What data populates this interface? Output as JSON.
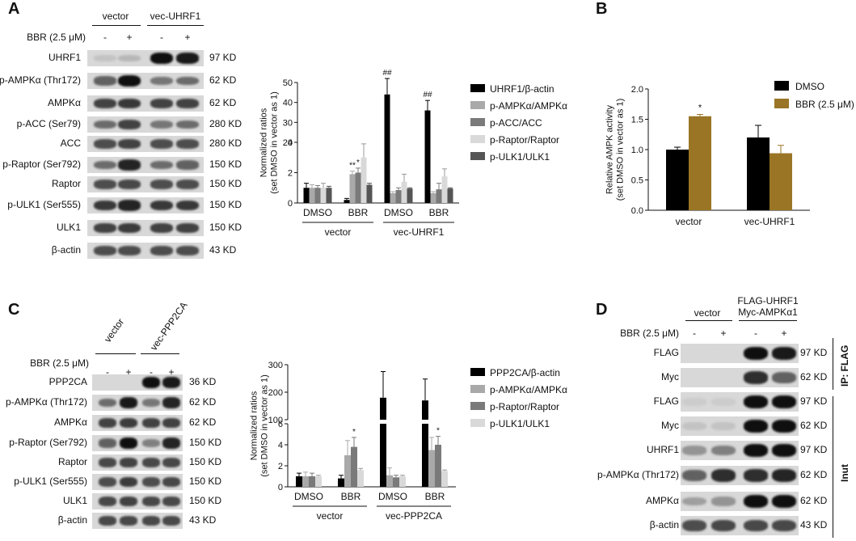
{
  "colors": {
    "black": "#000000",
    "gray_light": "#a9a9a9",
    "gray_mid": "#7a7a7a",
    "gray_pale": "#d9d9d9",
    "gray_dark": "#555555",
    "olive": "#9a7526"
  },
  "panel_A": {
    "label": "A",
    "group_labels": [
      "vector",
      "vec-UHRF1"
    ],
    "treatment": "BBR (2.5 μM)",
    "signs": [
      "-",
      "+",
      "-",
      "+"
    ],
    "blots": [
      {
        "name": "UHRF1",
        "size": "97 KD",
        "intensity": [
          0.12,
          0.18,
          1.0,
          0.95
        ]
      },
      {
        "name": "p-AMPKα (Thr172)",
        "size": "62 KD",
        "intensity": [
          0.6,
          1.0,
          0.5,
          0.55
        ]
      },
      {
        "name": "AMPKα",
        "size": "62 KD",
        "intensity": [
          0.75,
          0.8,
          0.75,
          0.75
        ]
      },
      {
        "name": "p-ACC (Ser79)",
        "size": "280 KD",
        "intensity": [
          0.55,
          0.75,
          0.5,
          0.55
        ]
      },
      {
        "name": "ACC",
        "size": "280 KD",
        "intensity": [
          0.7,
          0.75,
          0.7,
          0.7
        ]
      },
      {
        "name": "p-Raptor (Ser792)",
        "size": "150 KD",
        "intensity": [
          0.55,
          0.9,
          0.55,
          0.6
        ]
      },
      {
        "name": "Raptor",
        "size": "150 KD",
        "intensity": [
          0.7,
          0.72,
          0.7,
          0.7
        ]
      },
      {
        "name": "p-ULK1 (Ser555)",
        "size": "150 KD",
        "intensity": [
          0.8,
          0.9,
          0.8,
          0.8
        ]
      },
      {
        "name": "ULK1",
        "size": "150 KD",
        "intensity": [
          0.75,
          0.78,
          0.75,
          0.75
        ]
      },
      {
        "name": "β-actin",
        "size": "43 KD",
        "intensity": [
          0.7,
          0.7,
          0.7,
          0.7
        ]
      }
    ]
  },
  "panel_B": {
    "label": "B"
  },
  "panel_C": {
    "label": "C",
    "group_labels": [
      "vector",
      "vec-PPP2CA"
    ],
    "treatment": "BBR (2.5 μM)",
    "signs": [
      "-",
      "+",
      "-",
      "+"
    ],
    "blots": [
      {
        "name": "PPP2CA",
        "size": "36 KD",
        "intensity": [
          0.0,
          0.0,
          1.0,
          0.95
        ]
      },
      {
        "name": "p-AMPKα (Thr172)",
        "size": "62 KD",
        "intensity": [
          0.55,
          0.95,
          0.5,
          0.9
        ]
      },
      {
        "name": "AMPKα",
        "size": "62 KD",
        "intensity": [
          0.75,
          0.78,
          0.75,
          0.75
        ]
      },
      {
        "name": "p-Raptor (Ser792)",
        "size": "150 KD",
        "intensity": [
          0.6,
          1.0,
          0.45,
          0.9
        ]
      },
      {
        "name": "Raptor",
        "size": "150 KD",
        "intensity": [
          0.72,
          0.75,
          0.72,
          0.72
        ]
      },
      {
        "name": "p-ULK1 (Ser555)",
        "size": "150 KD",
        "intensity": [
          0.7,
          0.78,
          0.7,
          0.72
        ]
      },
      {
        "name": "ULK1",
        "size": "150 KD",
        "intensity": [
          0.72,
          0.75,
          0.72,
          0.72
        ]
      },
      {
        "name": "β-actin",
        "size": "43 KD",
        "intensity": [
          0.72,
          0.72,
          0.72,
          0.72
        ]
      }
    ]
  },
  "panel_D": {
    "label": "D",
    "group_labels": [
      "vector",
      "FLAG-UHRF1",
      "Myc-AMPKα1"
    ],
    "treatment": "BBR (2.5 μM)",
    "signs": [
      "-",
      "+",
      "-",
      "+"
    ],
    "ip_label": "IP: FLAG",
    "input_label": "Inut",
    "blots": [
      {
        "name": "FLAG",
        "size": "97 KD",
        "intensity": [
          0.02,
          0.02,
          1.0,
          0.95
        ]
      },
      {
        "name": "Myc",
        "size": "62 KD",
        "intensity": [
          0.02,
          0.02,
          0.85,
          0.6
        ]
      },
      {
        "name": "FLAG",
        "size": "97 KD",
        "intensity": [
          0.08,
          0.08,
          1.0,
          1.0
        ]
      },
      {
        "name": "Myc",
        "size": "62 KD",
        "intensity": [
          0.12,
          0.12,
          1.0,
          1.0
        ]
      },
      {
        "name": "UHRF1",
        "size": "97 KD",
        "intensity": [
          0.35,
          0.45,
          1.0,
          1.0
        ]
      },
      {
        "name": "p-AMPKα (Thr172)",
        "size": "62 KD",
        "intensity": [
          0.6,
          0.85,
          0.85,
          0.9
        ]
      },
      {
        "name": "AMPKα",
        "size": "62 KD",
        "intensity": [
          0.3,
          0.35,
          1.0,
          1.0
        ]
      },
      {
        "name": "β-actin",
        "size": "43 KD",
        "intensity": [
          0.7,
          0.72,
          0.72,
          0.72
        ]
      }
    ]
  },
  "chart_data": [
    {
      "type": "bar",
      "panel": "A",
      "ylabel": "Normalized ratios\n(set DMSO in vector as 1)",
      "categories": [
        "DMSO",
        "BBR",
        "DMSO",
        "BBR"
      ],
      "group_labels": [
        "vector",
        "vec-UHRF1"
      ],
      "axis_break": {
        "lower": [
          0,
          4
        ],
        "upper": [
          20,
          50
        ]
      },
      "yticks": [
        0,
        2,
        4,
        20,
        30,
        40,
        50
      ],
      "series": [
        {
          "name": "UHRF1/β-actin",
          "color": "#000000",
          "values": [
            1.0,
            0.2,
            44,
            36
          ],
          "errors": [
            0.3,
            0.1,
            8,
            5
          ]
        },
        {
          "name": "p-AMPKα/AMPKα",
          "color": "#a9a9a9",
          "values": [
            1.0,
            1.9,
            0.65,
            0.65
          ],
          "errors": [
            0.2,
            0.2,
            0.1,
            0.1
          ]
        },
        {
          "name": "p-ACC/ACC",
          "color": "#7a7a7a",
          "values": [
            1.0,
            2.0,
            0.85,
            0.9
          ],
          "errors": [
            0.15,
            0.3,
            0.15,
            0.4
          ]
        },
        {
          "name": "p-Raptor/Raptor",
          "color": "#d9d9d9",
          "values": [
            1.0,
            3.0,
            1.4,
            1.75
          ],
          "errors": [
            0.3,
            0.9,
            0.5,
            0.5
          ]
        },
        {
          "name": "p-ULK1/ULK1",
          "color": "#555555",
          "values": [
            1.0,
            1.2,
            0.95,
            0.95
          ],
          "errors": [
            0.1,
            0.1,
            0.05,
            0.05
          ]
        }
      ],
      "annotations": [
        {
          "text": "**",
          "group": 1,
          "series": 1
        },
        {
          "text": "*",
          "group": 1,
          "series": 2
        },
        {
          "text": "##",
          "group": 2,
          "series": 0
        },
        {
          "text": "##",
          "group": 3,
          "series": 0
        }
      ]
    },
    {
      "type": "bar",
      "panel": "B",
      "ylabel": "Relative AMPK activity\n(set DMSO in vector as 1)",
      "categories": [
        "vector",
        "vec-UHRF1"
      ],
      "ylim": [
        0,
        2.0
      ],
      "yticks": [
        0.0,
        0.5,
        1.0,
        1.5,
        2.0
      ],
      "series": [
        {
          "name": "DMSO",
          "color": "#000000",
          "values": [
            1.0,
            1.2
          ],
          "errors": [
            0.04,
            0.2
          ]
        },
        {
          "name": "BBR (2.5 μM)",
          "color": "#9a7526",
          "values": [
            1.55,
            0.94
          ],
          "errors": [
            0.03,
            0.13
          ]
        }
      ],
      "annotations": [
        {
          "text": "*",
          "group": 0,
          "series": 1
        }
      ]
    },
    {
      "type": "bar",
      "panel": "C",
      "ylabel": "Normalized ratios\n(set DMSO in vector as 1)",
      "categories": [
        "DMSO",
        "BBR",
        "DMSO",
        "BBR"
      ],
      "group_labels": [
        "vector",
        "vec-PPP2CA"
      ],
      "axis_break": {
        "lower": [
          0,
          6
        ],
        "upper": [
          100,
          300
        ]
      },
      "yticks": [
        0,
        2,
        4,
        6,
        100,
        200,
        300
      ],
      "series": [
        {
          "name": "PPP2CA/β-actin",
          "color": "#000000",
          "values": [
            1.0,
            0.8,
            180,
            170
          ],
          "errors": [
            0.3,
            0.3,
            95,
            78
          ]
        },
        {
          "name": "p-AMPKα/AMPKα",
          "color": "#a9a9a9",
          "values": [
            1.0,
            3.0,
            1.1,
            3.5
          ],
          "errors": [
            0.4,
            1.4,
            0.7,
            1.2
          ]
        },
        {
          "name": "p-Raptor/Raptor",
          "color": "#7a7a7a",
          "values": [
            1.0,
            3.8,
            0.9,
            4.0
          ],
          "errors": [
            0.3,
            0.9,
            0.2,
            0.8
          ]
        },
        {
          "name": "p-ULK1/ULK1",
          "color": "#d9d9d9",
          "values": [
            1.0,
            1.6,
            1.0,
            1.5
          ],
          "errors": [
            0.1,
            0.15,
            0.1,
            0.1
          ]
        }
      ],
      "annotations": [
        {
          "text": "*",
          "group": 1,
          "series": 2
        },
        {
          "text": "*",
          "group": 3,
          "series": 2
        }
      ]
    }
  ]
}
